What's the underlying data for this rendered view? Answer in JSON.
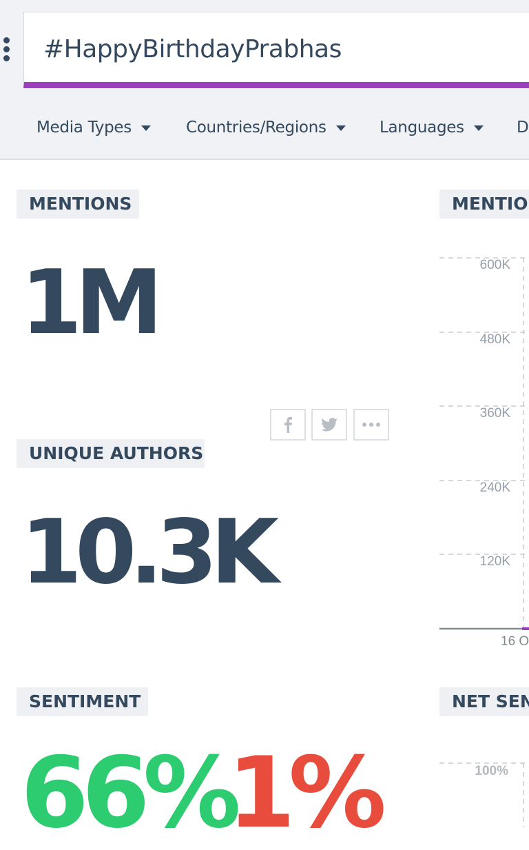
{
  "search": {
    "value": "#HappyBirthdayPrabhas"
  },
  "filters": [
    "Media Types",
    "Countries/Regions",
    "Languages",
    "D"
  ],
  "mentions": {
    "label": "MENTIONS",
    "value": "1M"
  },
  "unique_authors": {
    "label": "UNIQUE AUTHORS",
    "value": "10.3K"
  },
  "sentiment": {
    "label": "SENTIMENT",
    "positive": "66%",
    "negative": "1%",
    "positive_color": "#2ecc71",
    "negative_color": "#e74c3c"
  },
  "share_icons": [
    "facebook-icon",
    "twitter-icon",
    "more-icon"
  ],
  "mentions_chart": {
    "label": "MENTION",
    "y_ticks": [
      "600K",
      "480K",
      "360K",
      "240K",
      "120K"
    ],
    "x_label": "16 O"
  },
  "net_sentiment": {
    "label": "NET SEN",
    "y_tick": "100%"
  },
  "accent_color": "#9b3fbf"
}
